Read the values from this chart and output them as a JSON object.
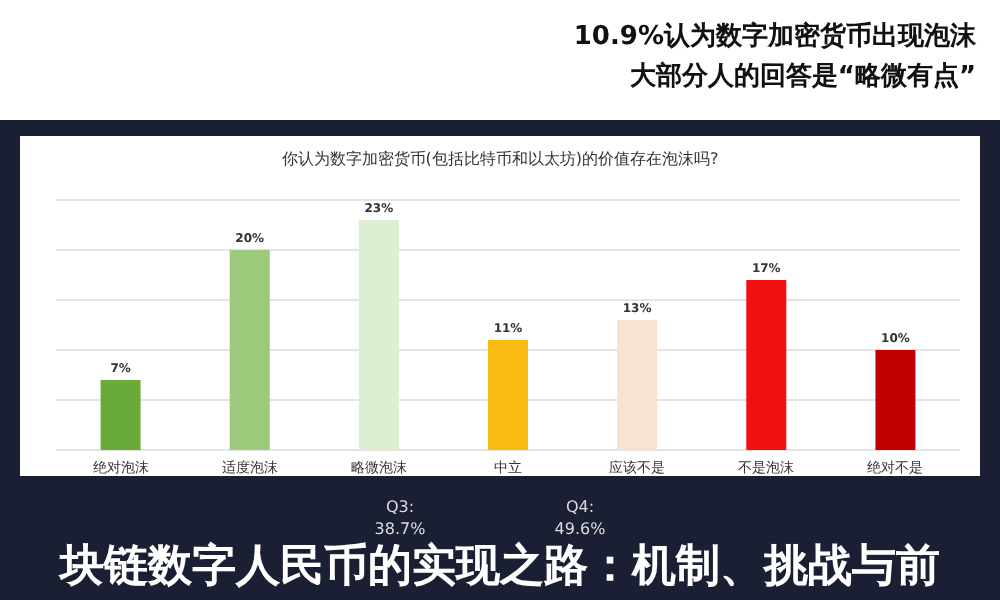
{
  "chart_data": {
    "type": "bar",
    "title": "你认为数字加密货币(包括比特币和以太坊)的价值存在泡沫吗?",
    "categories": [
      "绝对泡沫",
      "适度泡沫",
      "略微泡沫",
      "中立",
      "应该不是",
      "不是泡沫",
      "绝对不是"
    ],
    "values": [
      7,
      20,
      23,
      11,
      13,
      17,
      10
    ],
    "colors": [
      "#6aaa3a",
      "#9cc97a",
      "#dcefd2",
      "#f7bb12",
      "#f7e3d4",
      "#f01010",
      "#c00000"
    ],
    "value_labels": [
      "7%",
      "20%",
      "23%",
      "11%",
      "13%",
      "17%",
      "10%"
    ],
    "ylim": [
      0,
      25
    ],
    "yticks": [
      {
        "value": 0,
        "label": null
      },
      {
        "value": 5,
        "label": null
      },
      {
        "value": 10,
        "label": null
      },
      {
        "value": 15,
        "label": null
      },
      {
        "value": 20,
        "label": null
      },
      {
        "value": 25,
        "label": null
      }
    ],
    "grid": "y",
    "tick_labels": "x",
    "annotations": [
      "10.9%认为数字加密货币出现泡沫",
      "大部分人的回答是“略微有点”",
      "Q3:",
      "38.7%",
      "Q4:",
      "49.6%",
      "块链数字人民币的实现之路：机制、挑战与前"
    ]
  }
}
